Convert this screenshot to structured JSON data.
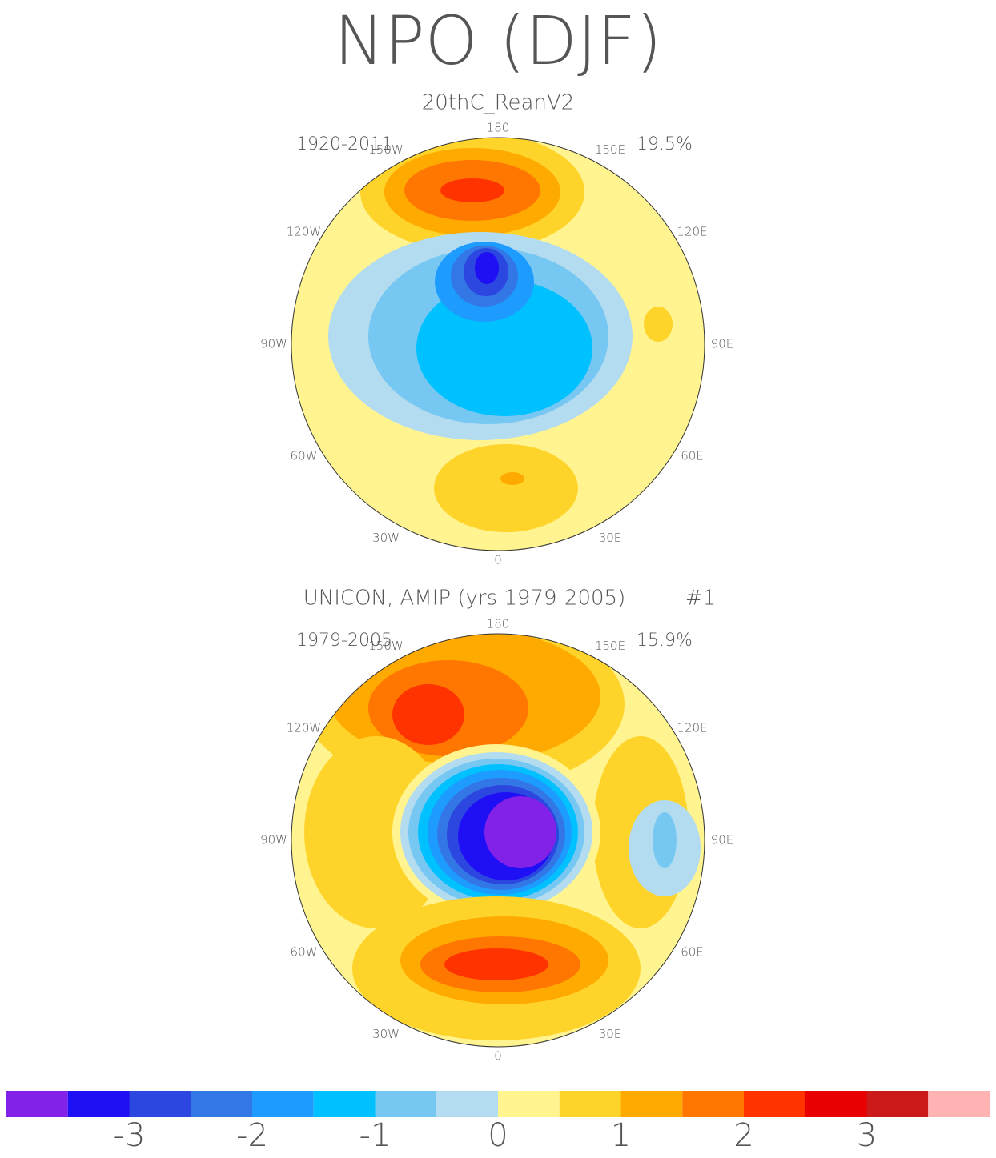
{
  "title": "NPO (DJF)",
  "lon_labels": [
    "0",
    "30E",
    "60E",
    "90E",
    "120E",
    "150E",
    "180",
    "150W",
    "120W",
    "90W",
    "60W",
    "30W"
  ],
  "panels": [
    {
      "subtitle": "20thC_ReanV2",
      "period": "1920-2011",
      "variance": "19.5%"
    },
    {
      "subtitle": "UNICON, AMIP (yrs 1979-2005)",
      "run": "#1",
      "period": "1979-2005",
      "variance": "15.9%"
    }
  ],
  "colorbar": {
    "lim": [
      -4,
      4
    ],
    "ticks": [
      -3,
      -2,
      -1,
      0,
      1,
      2,
      3
    ],
    "colors": [
      "#8221e8",
      "#1e0ff5",
      "#2c46e0",
      "#3377e6",
      "#1e9bff",
      "#00c1ff",
      "#76c8f2",
      "#b3dcf0",
      "#fff48f",
      "#ffd42a",
      "#ffaa00",
      "#ff7700",
      "#ff3300",
      "#e80000",
      "#cc1a1a",
      "#ffb3b3"
    ]
  }
}
